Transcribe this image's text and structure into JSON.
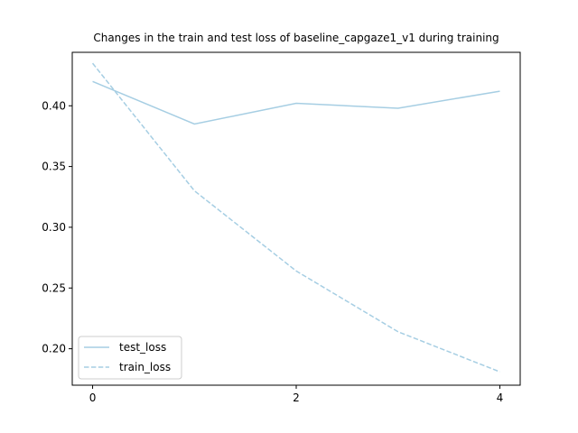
{
  "chart_data": {
    "type": "line",
    "title": "Changes in the train and test loss of baseline_capgaze1_v1 during training",
    "xlabel": "",
    "ylabel": "",
    "x": [
      0,
      1,
      2,
      3,
      4
    ],
    "xlim": [
      -0.2,
      4.2
    ],
    "ylim": [
      0.17,
      0.444
    ],
    "xticks": [
      0,
      2,
      4
    ],
    "xtick_labels": [
      "0",
      "2",
      "4"
    ],
    "yticks": [
      0.2,
      0.25,
      0.3,
      0.35,
      0.4
    ],
    "ytick_labels": [
      "0.20",
      "0.25",
      "0.30",
      "0.35",
      "0.40"
    ],
    "grid": false,
    "legend_position": "lower-left",
    "series": [
      {
        "name": "test_loss",
        "values": [
          0.42,
          0.385,
          0.402,
          0.398,
          0.412
        ],
        "style": "solid",
        "color": "#a6cee3"
      },
      {
        "name": "train_loss",
        "values": [
          0.435,
          0.33,
          0.264,
          0.214,
          0.181
        ],
        "style": "dashed",
        "color": "#a6cee3"
      }
    ]
  }
}
